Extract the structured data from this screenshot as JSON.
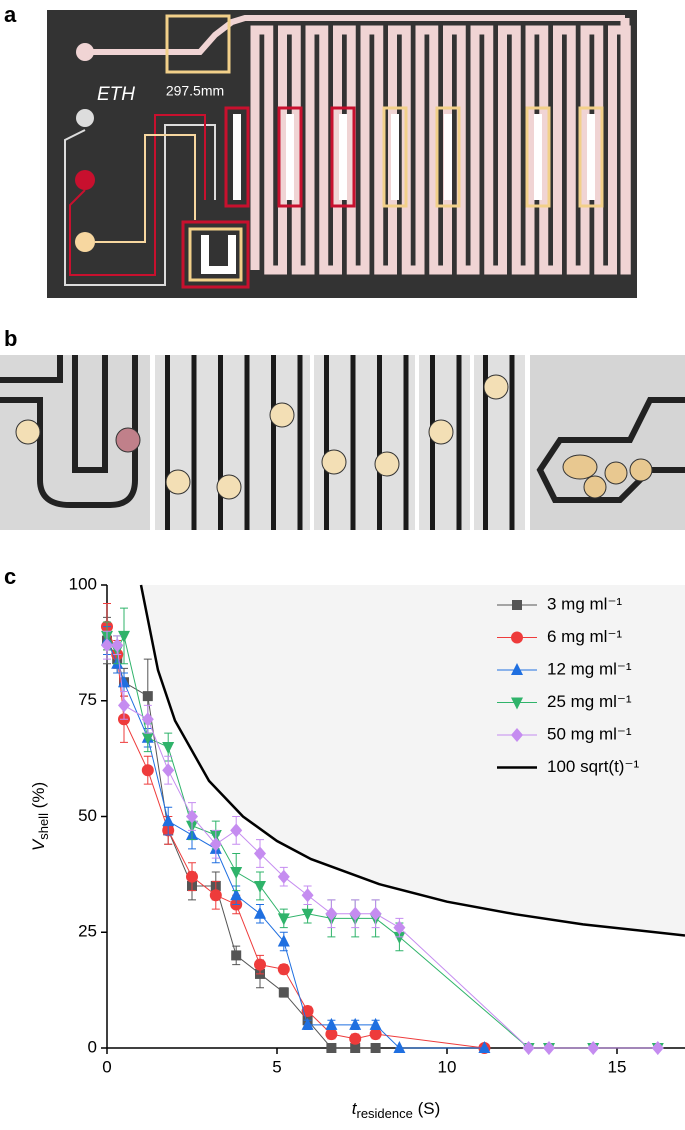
{
  "panels": [
    "a",
    "b",
    "c"
  ],
  "device": {
    "logo": "ETH",
    "length": "297.5mm"
  },
  "chart_data": {
    "type": "line",
    "x_label": [
      "t",
      "residence",
      " (S)"
    ],
    "y_label": [
      "V",
      "shell",
      " (%)"
    ],
    "xlim": [
      0,
      17
    ],
    "ylim": [
      0,
      100
    ],
    "xticks": [
      0,
      5,
      10,
      15
    ],
    "yticks": [
      0,
      25,
      50,
      75,
      100
    ],
    "legend": "top-right",
    "series": [
      {
        "name": "3 mg ml⁻¹",
        "color": "#555555",
        "marker": "square",
        "x": [
          0,
          0.3,
          0.5,
          1.2,
          1.8,
          2.5,
          3.2,
          3.8,
          4.5,
          5.2,
          5.9,
          6.6,
          7.3,
          7.9
        ],
        "values": [
          88,
          84,
          79,
          76,
          47,
          35,
          35,
          20,
          16,
          12,
          6,
          0,
          0,
          0
        ],
        "errors": [
          5,
          3,
          3,
          8,
          3,
          3,
          3,
          2,
          3,
          1,
          1,
          0,
          0,
          0
        ]
      },
      {
        "name": "6 mg ml⁻¹",
        "color": "#ee3b3b",
        "marker": "circle",
        "x": [
          0,
          0.3,
          0.5,
          1.2,
          1.8,
          2.5,
          3.2,
          3.8,
          4.5,
          5.2,
          5.9,
          6.6,
          7.3,
          7.9,
          11.1
        ],
        "values": [
          91,
          85,
          71,
          60,
          47,
          37,
          33,
          31,
          18,
          17,
          8,
          3,
          2,
          3,
          0
        ],
        "errors": [
          5,
          3,
          5,
          3,
          3,
          3,
          3,
          2,
          2,
          1,
          1,
          1,
          1,
          1,
          0
        ]
      },
      {
        "name": "12 mg ml⁻¹",
        "color": "#1f6fe0",
        "marker": "triangle-up",
        "x": [
          0,
          0.3,
          0.5,
          1.2,
          1.8,
          2.5,
          3.2,
          3.8,
          4.5,
          5.2,
          5.9,
          6.6,
          7.3,
          7.9,
          8.6,
          11.1
        ],
        "values": [
          88,
          83,
          79,
          67,
          49,
          46,
          43,
          33,
          29,
          23,
          5,
          5,
          5,
          5,
          0,
          0
        ],
        "errors": [
          3,
          2,
          2,
          2,
          3,
          3,
          3,
          2,
          2,
          2,
          1,
          1,
          1,
          1,
          0,
          0
        ]
      },
      {
        "name": "25 mg ml⁻¹",
        "color": "#2fb36a",
        "marker": "triangle-down",
        "x": [
          0,
          0.3,
          0.5,
          1.2,
          1.8,
          2.5,
          3.2,
          3.8,
          4.5,
          5.2,
          5.9,
          6.6,
          7.3,
          7.9,
          8.6,
          12.4,
          13.0,
          14.3,
          16.2
        ],
        "values": [
          89,
          86,
          89,
          67,
          65,
          48,
          46,
          38,
          35,
          28,
          29,
          28,
          28,
          28,
          24,
          0,
          0,
          0,
          0
        ],
        "errors": [
          3,
          3,
          6,
          3,
          3,
          3,
          3,
          4,
          3,
          2,
          2,
          4,
          4,
          4,
          3,
          0,
          0,
          0,
          0
        ]
      },
      {
        "name": "50 mg ml⁻¹",
        "color": "#c58cf0",
        "marker": "diamond",
        "x": [
          0,
          0.3,
          0.5,
          1.2,
          1.8,
          2.5,
          3.2,
          3.8,
          4.5,
          5.2,
          5.9,
          6.6,
          7.3,
          7.9,
          8.6,
          12.4,
          13.0,
          14.3,
          16.2
        ],
        "values": [
          87,
          87,
          74,
          71,
          60,
          50,
          44,
          47,
          42,
          37,
          33,
          29,
          29,
          29,
          26,
          0,
          0,
          0,
          0
        ],
        "errors": [
          3,
          2,
          3,
          3,
          3,
          3,
          3,
          3,
          3,
          2,
          2,
          3,
          3,
          3,
          2,
          0,
          0,
          0,
          0
        ]
      },
      {
        "name": "100 sqrt(t)⁻¹",
        "color": "#000000",
        "marker": "none",
        "x": [
          1,
          1.5,
          2,
          3,
          4,
          5,
          6,
          8,
          10,
          12,
          14,
          17
        ],
        "values": [
          100,
          81.6,
          70.7,
          57.7,
          50,
          44.7,
          40.8,
          35.4,
          31.6,
          28.9,
          26.7,
          24.3
        ]
      }
    ]
  }
}
